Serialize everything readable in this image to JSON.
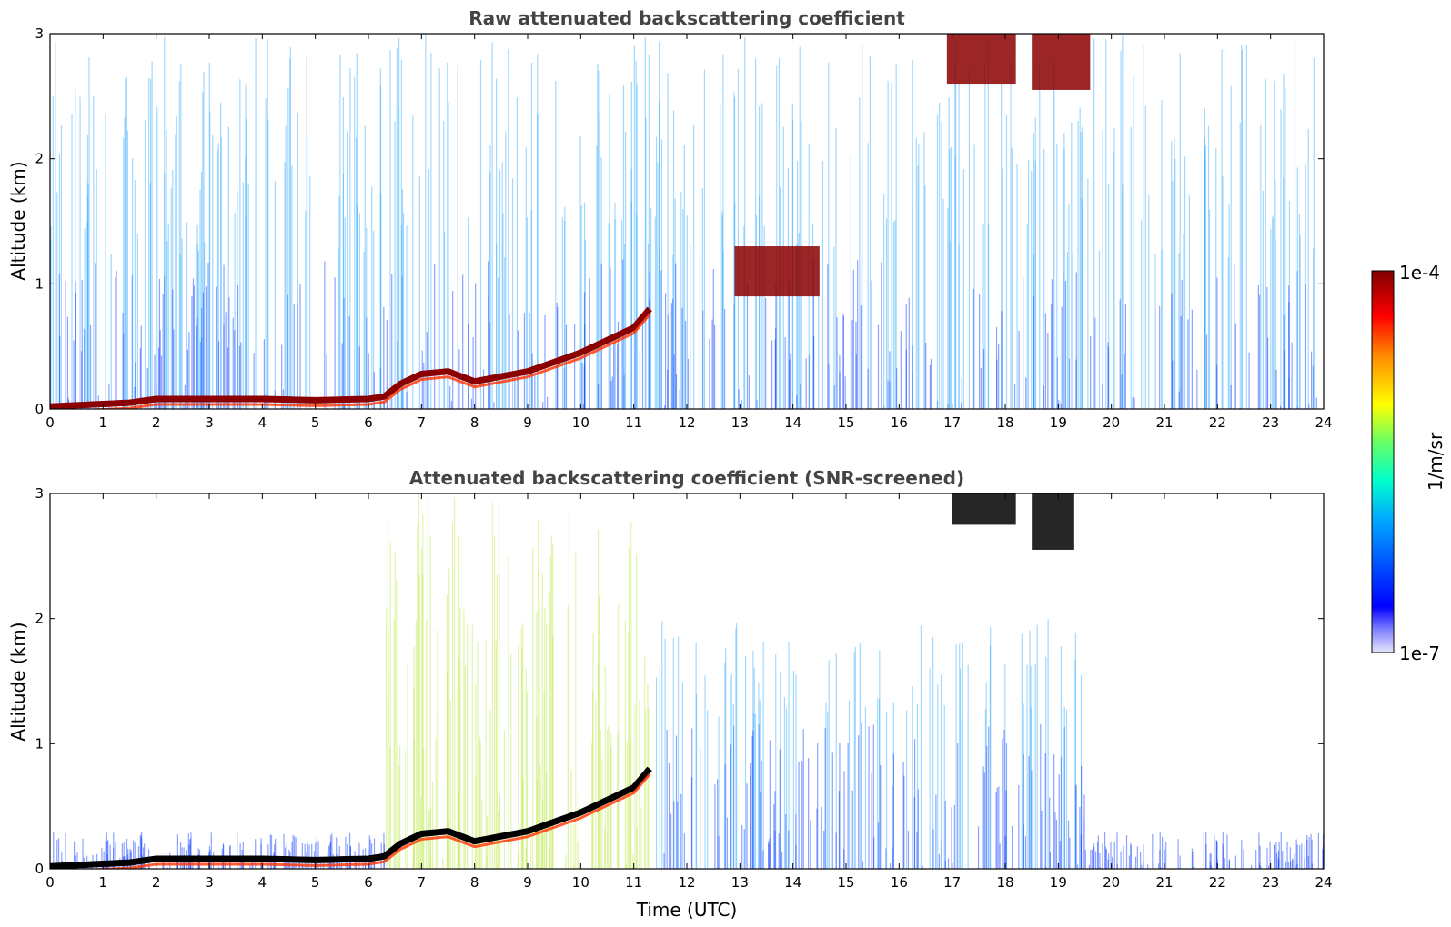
{
  "chart_data": [
    {
      "type": "heatmap",
      "title": "Raw attenuated backscattering coefficient",
      "xlabel": "",
      "ylabel": "Altitude (km)",
      "xlim": [
        0,
        24
      ],
      "ylim": [
        0,
        3
      ],
      "xticks": [
        "0",
        "1",
        "2",
        "3",
        "4",
        "5",
        "6",
        "7",
        "8",
        "9",
        "10",
        "11",
        "12",
        "13",
        "14",
        "15",
        "16",
        "17",
        "18",
        "19",
        "20",
        "21",
        "22",
        "23",
        "24"
      ],
      "yticks": [
        "0",
        "1",
        "2",
        "3"
      ],
      "features": [
        {
          "kind": "boundary-layer",
          "t": [
            0,
            1.5,
            2,
            3,
            4,
            5,
            6,
            6.3,
            6.6,
            7,
            7.5,
            8,
            9,
            10,
            11,
            11.3
          ],
          "alt": [
            0.02,
            0.05,
            0.08,
            0.08,
            0.08,
            0.07,
            0.08,
            0.1,
            0.2,
            0.28,
            0.3,
            0.22,
            0.3,
            0.45,
            0.65,
            0.8
          ],
          "level": "high"
        },
        {
          "kind": "cloud",
          "t": [
            16.9,
            18.2
          ],
          "alt": [
            2.6,
            3.0
          ],
          "level": "high"
        },
        {
          "kind": "cloud",
          "t": [
            18.5,
            19.6
          ],
          "alt": [
            2.55,
            3.0
          ],
          "level": "high"
        },
        {
          "kind": "cloud",
          "t": [
            12.9,
            14.5
          ],
          "alt": [
            0.9,
            1.3
          ],
          "level": "high"
        }
      ]
    },
    {
      "type": "heatmap",
      "title": "Attenuated backscattering coefficient (SNR-screened)",
      "xlabel": "Time (UTC)",
      "ylabel": "Altitude (km)",
      "xlim": [
        0,
        24
      ],
      "ylim": [
        0,
        3
      ],
      "xticks": [
        "0",
        "1",
        "2",
        "3",
        "4",
        "5",
        "6",
        "7",
        "8",
        "9",
        "10",
        "11",
        "12",
        "13",
        "14",
        "15",
        "16",
        "17",
        "18",
        "19",
        "20",
        "21",
        "22",
        "23",
        "24"
      ],
      "yticks": [
        "0",
        "1",
        "2",
        "3"
      ],
      "features": [
        {
          "kind": "boundary-layer",
          "t": [
            0,
            1.5,
            2,
            3,
            4,
            5,
            6,
            6.3,
            6.6,
            7,
            7.5,
            8,
            9,
            10,
            11,
            11.3
          ],
          "alt": [
            0.02,
            0.05,
            0.08,
            0.08,
            0.08,
            0.07,
            0.08,
            0.1,
            0.2,
            0.28,
            0.3,
            0.22,
            0.3,
            0.45,
            0.65,
            0.8
          ],
          "level": "saturated"
        },
        {
          "kind": "cloud",
          "t": [
            17,
            18.2
          ],
          "alt": [
            2.75,
            3.0
          ],
          "level": "saturated"
        },
        {
          "kind": "cloud",
          "t": [
            18.5,
            19.3
          ],
          "alt": [
            2.55,
            3.0
          ],
          "level": "saturated"
        }
      ]
    }
  ],
  "colorbar": {
    "label": "1/m/sr",
    "max_label": "1e-4",
    "min_label": "1e-7",
    "range": [
      1e-07,
      0.0001
    ],
    "scale": "log",
    "colormap": "jet"
  }
}
